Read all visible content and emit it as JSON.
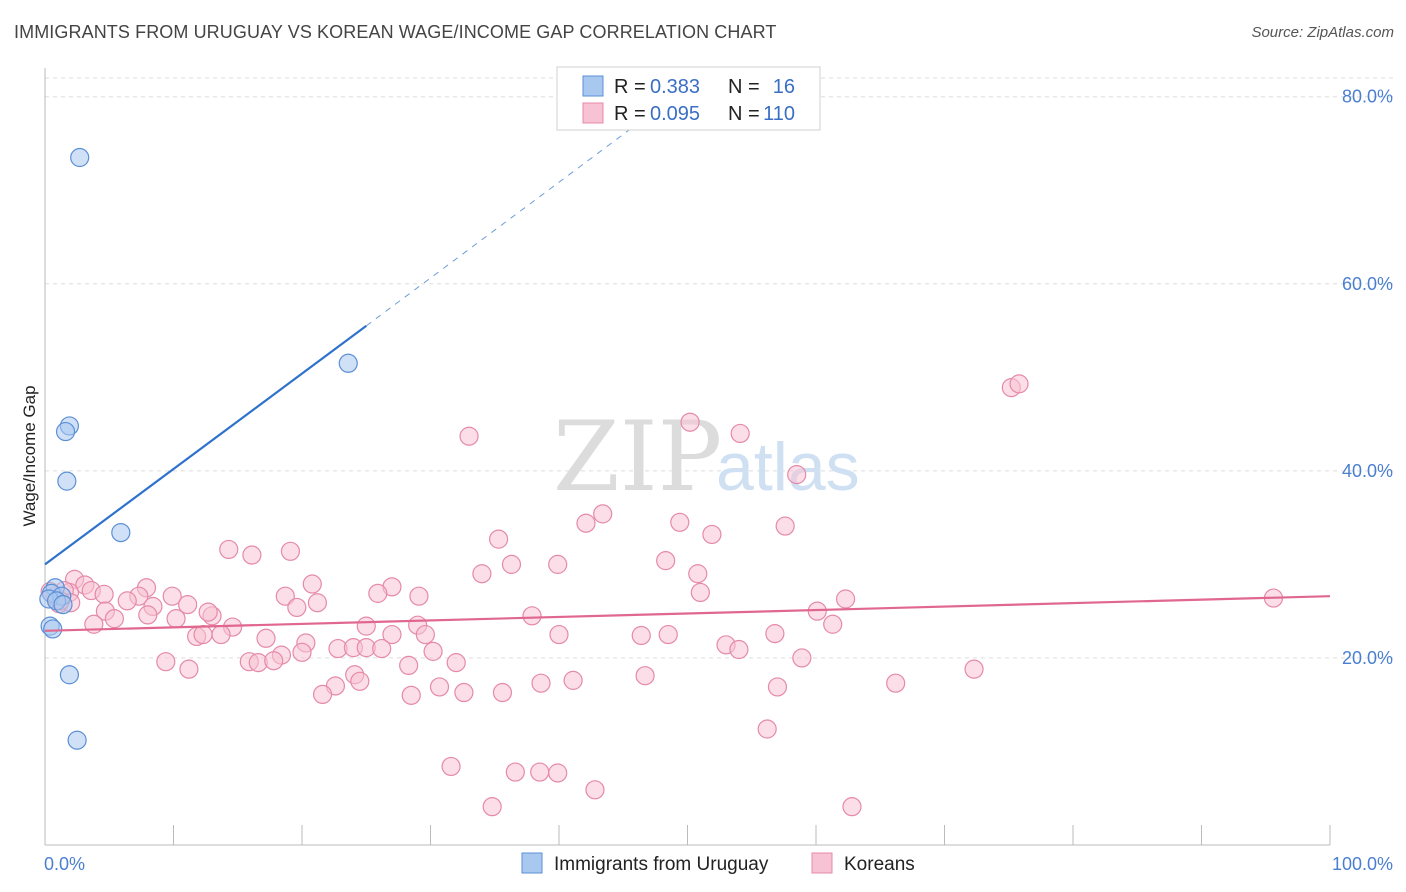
{
  "header": {
    "title": "IMMIGRANTS FROM URUGUAY VS KOREAN WAGE/INCOME GAP CORRELATION CHART",
    "source": "Source: ZipAtlas.com"
  },
  "watermark": {
    "zip": "ZIP",
    "atlas": "atlas"
  },
  "legend_top": {
    "rows": [
      {
        "r_label": "R =",
        "r_value": "0.383",
        "n_label": "N =",
        "n_value": "16"
      },
      {
        "r_label": "R =",
        "r_value": "0.095",
        "n_label": "N =",
        "n_value": "110"
      }
    ]
  },
  "legend_bottom": {
    "items": [
      {
        "label": "Immigrants from Uruguay"
      },
      {
        "label": "Koreans"
      }
    ]
  },
  "colors": {
    "uruguay_fill": "#a9c8f0",
    "uruguay_stroke": "#5b8fd6",
    "uruguay_line": "#2f72cc",
    "korean_fill": "#f7c3d4",
    "korean_stroke": "#e58aa8",
    "korean_line": "#e0678f",
    "grid": "#dddddd",
    "tick_text": "#4a7fd0"
  },
  "chart_data": {
    "type": "scatter",
    "title": "IMMIGRANTS FROM URUGUAY VS KOREAN WAGE/INCOME GAP CORRELATION CHART",
    "xlabel": "",
    "ylabel": "Wage/Income Gap",
    "xlim": [
      0,
      100
    ],
    "ylim": [
      0,
      82
    ],
    "x_tick_labels": [
      "0.0%",
      "100.0%"
    ],
    "y_ticks": [
      20,
      40,
      60,
      80
    ],
    "y_tick_labels": [
      "20.0%",
      "40.0%",
      "60.0%",
      "80.0%"
    ],
    "grid": true,
    "series": [
      {
        "name": "Immigrants from Uruguay",
        "R": 0.383,
        "N": 16,
        "trend": {
          "x0": 0,
          "y0": 30.0,
          "x1": 25,
          "y1": 55.5,
          "dash_to_x": 46,
          "dash_to_y": 77.0
        },
        "points": [
          [
            2.7,
            73.5
          ],
          [
            23.6,
            51.5
          ],
          [
            1.9,
            44.8
          ],
          [
            1.6,
            44.2
          ],
          [
            1.7,
            38.9
          ],
          [
            5.9,
            33.4
          ],
          [
            0.8,
            27.5
          ],
          [
            0.5,
            26.9
          ],
          [
            1.3,
            26.6
          ],
          [
            0.3,
            26.3
          ],
          [
            0.9,
            26.1
          ],
          [
            1.4,
            25.7
          ],
          [
            0.4,
            23.4
          ],
          [
            0.6,
            23.1
          ],
          [
            1.9,
            18.2
          ],
          [
            2.5,
            11.2
          ]
        ]
      },
      {
        "name": "Koreans",
        "R": 0.095,
        "N": 110,
        "trend": {
          "x0": 0,
          "y0": 22.9,
          "x1": 100,
          "y1": 26.6
        },
        "points": [
          [
            75.2,
            48.9
          ],
          [
            75.8,
            49.3
          ],
          [
            50.2,
            45.2
          ],
          [
            54.1,
            44.0
          ],
          [
            33.0,
            43.7
          ],
          [
            58.5,
            39.6
          ],
          [
            43.4,
            35.4
          ],
          [
            42.1,
            34.4
          ],
          [
            49.4,
            34.5
          ],
          [
            57.6,
            34.1
          ],
          [
            51.9,
            33.2
          ],
          [
            35.3,
            32.7
          ],
          [
            14.3,
            31.6
          ],
          [
            16.1,
            31.0
          ],
          [
            19.1,
            31.4
          ],
          [
            36.3,
            30.0
          ],
          [
            39.9,
            30.0
          ],
          [
            48.3,
            30.4
          ],
          [
            34.0,
            29.0
          ],
          [
            50.8,
            29.0
          ],
          [
            2.3,
            28.4
          ],
          [
            3.1,
            27.8
          ],
          [
            20.8,
            27.9
          ],
          [
            27.0,
            27.6
          ],
          [
            7.9,
            27.5
          ],
          [
            3.6,
            27.2
          ],
          [
            25.9,
            26.9
          ],
          [
            1.9,
            27.0
          ],
          [
            4.6,
            26.8
          ],
          [
            7.3,
            26.6
          ],
          [
            9.9,
            26.6
          ],
          [
            18.7,
            26.6
          ],
          [
            29.1,
            26.6
          ],
          [
            62.3,
            26.3
          ],
          [
            51.0,
            27.0
          ],
          [
            95.6,
            26.4
          ],
          [
            1.1,
            25.8
          ],
          [
            6.4,
            26.1
          ],
          [
            8.4,
            25.5
          ],
          [
            11.1,
            25.7
          ],
          [
            21.2,
            25.9
          ],
          [
            19.6,
            25.4
          ],
          [
            4.7,
            25.0
          ],
          [
            8.0,
            24.6
          ],
          [
            13.0,
            24.5
          ],
          [
            12.7,
            24.9
          ],
          [
            5.4,
            24.2
          ],
          [
            10.2,
            24.2
          ],
          [
            37.9,
            24.5
          ],
          [
            60.1,
            25.0
          ],
          [
            3.8,
            23.6
          ],
          [
            14.6,
            23.3
          ],
          [
            25.0,
            23.4
          ],
          [
            29.0,
            23.5
          ],
          [
            61.3,
            23.6
          ],
          [
            11.8,
            22.3
          ],
          [
            13.7,
            22.5
          ],
          [
            12.3,
            22.5
          ],
          [
            27.0,
            22.5
          ],
          [
            29.6,
            22.5
          ],
          [
            40.0,
            22.5
          ],
          [
            46.4,
            22.4
          ],
          [
            48.5,
            22.5
          ],
          [
            56.8,
            22.6
          ],
          [
            17.2,
            22.1
          ],
          [
            20.3,
            21.6
          ],
          [
            9.4,
            19.6
          ],
          [
            11.2,
            18.8
          ],
          [
            15.9,
            19.6
          ],
          [
            16.6,
            19.5
          ],
          [
            18.4,
            20.3
          ],
          [
            20.0,
            20.6
          ],
          [
            22.8,
            21.0
          ],
          [
            24.0,
            21.1
          ],
          [
            25.0,
            21.1
          ],
          [
            26.2,
            21.0
          ],
          [
            28.3,
            19.2
          ],
          [
            30.2,
            20.7
          ],
          [
            32.0,
            19.5
          ],
          [
            53.0,
            21.4
          ],
          [
            54.0,
            20.9
          ],
          [
            58.9,
            20.0
          ],
          [
            22.6,
            17.0
          ],
          [
            24.1,
            18.2
          ],
          [
            24.5,
            17.5
          ],
          [
            28.5,
            16.0
          ],
          [
            30.7,
            16.9
          ],
          [
            32.6,
            16.3
          ],
          [
            35.6,
            16.3
          ],
          [
            38.6,
            17.3
          ],
          [
            41.1,
            17.6
          ],
          [
            46.7,
            18.1
          ],
          [
            57.0,
            16.9
          ],
          [
            66.2,
            17.3
          ],
          [
            72.3,
            18.8
          ],
          [
            21.6,
            16.1
          ],
          [
            56.2,
            12.4
          ],
          [
            31.6,
            8.4
          ],
          [
            36.6,
            7.8
          ],
          [
            38.5,
            7.8
          ],
          [
            39.9,
            7.7
          ],
          [
            42.8,
            5.9
          ],
          [
            34.8,
            4.1
          ],
          [
            62.8,
            4.1
          ],
          [
            0.8,
            26.6
          ],
          [
            1.5,
            27.2
          ],
          [
            2.0,
            25.9
          ],
          [
            1.2,
            26.1
          ],
          [
            0.4,
            27.1
          ],
          [
            17.8,
            19.7
          ]
        ]
      }
    ]
  }
}
